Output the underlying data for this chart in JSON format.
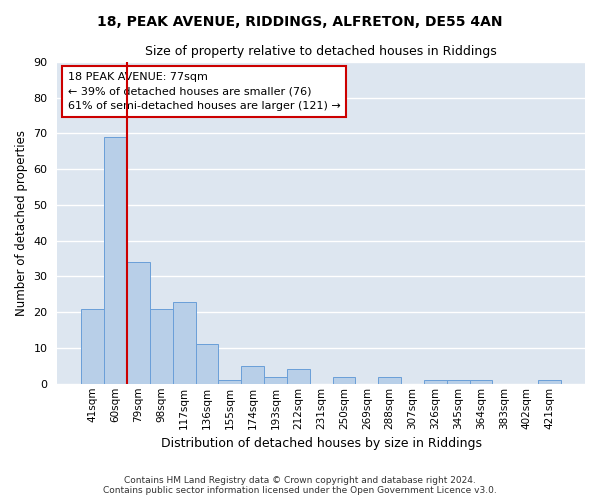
{
  "title1": "18, PEAK AVENUE, RIDDINGS, ALFRETON, DE55 4AN",
  "title2": "Size of property relative to detached houses in Riddings",
  "xlabel": "Distribution of detached houses by size in Riddings",
  "ylabel": "Number of detached properties",
  "categories": [
    "41sqm",
    "60sqm",
    "79sqm",
    "98sqm",
    "117sqm",
    "136sqm",
    "155sqm",
    "174sqm",
    "193sqm",
    "212sqm",
    "231sqm",
    "250sqm",
    "269sqm",
    "288sqm",
    "307sqm",
    "326sqm",
    "345sqm",
    "364sqm",
    "383sqm",
    "402sqm",
    "421sqm"
  ],
  "values": [
    21,
    69,
    34,
    21,
    23,
    11,
    1,
    5,
    2,
    4,
    0,
    2,
    0,
    2,
    0,
    1,
    1,
    1,
    0,
    0,
    1
  ],
  "bar_color": "#b8cfe8",
  "bar_edge_color": "#6a9fd8",
  "background_color": "#dde6f0",
  "grid_color": "#ffffff",
  "marker_line_color": "#cc0000",
  "annotation_line1": "18 PEAK AVENUE: 77sqm",
  "annotation_line2": "← 39% of detached houses are smaller (76)",
  "annotation_line3": "61% of semi-detached houses are larger (121) →",
  "annotation_box_color": "#cc0000",
  "ylim": [
    0,
    90
  ],
  "yticks": [
    0,
    10,
    20,
    30,
    40,
    50,
    60,
    70,
    80,
    90
  ],
  "footer_line1": "Contains HM Land Registry data © Crown copyright and database right 2024.",
  "footer_line2": "Contains public sector information licensed under the Open Government Licence v3.0."
}
